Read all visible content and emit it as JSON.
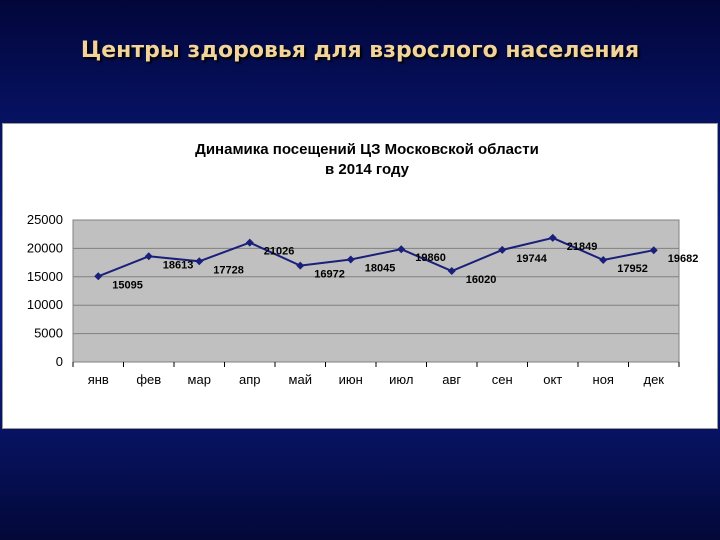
{
  "slide": {
    "title": "Центры здоровья для взрослого населения"
  },
  "colors": {
    "background": "#0b1e8a",
    "title": "#f2d49a",
    "plot_area": "#c0c0c0",
    "series_line": "#1a1f7a"
  },
  "chart_data": {
    "type": "line",
    "title": "Динамика посещений ЦЗ Московской области",
    "subtitle": "в 2014 году",
    "categories": [
      "янв",
      "фев",
      "мар",
      "апр",
      "май",
      "июн",
      "июл",
      "авг",
      "сен",
      "окт",
      "ноя",
      "дек"
    ],
    "series": [
      {
        "values": [
          15095,
          18613,
          17728,
          21026,
          16972,
          18045,
          19860,
          16020,
          19744,
          21849,
          17952,
          19682
        ]
      }
    ],
    "data_labels": [
      "15095",
      "18613",
      "17728",
      "21026",
      "16972",
      "18045",
      "19860",
      "16020",
      "19744",
      "21849",
      "17952",
      "19682"
    ],
    "y_ticks": [
      "0",
      "5000",
      "10000",
      "15000",
      "20000",
      "25000"
    ],
    "ylim": [
      0,
      25000
    ],
    "xlabel": "",
    "ylabel": "",
    "grid": true,
    "legend": "none"
  }
}
